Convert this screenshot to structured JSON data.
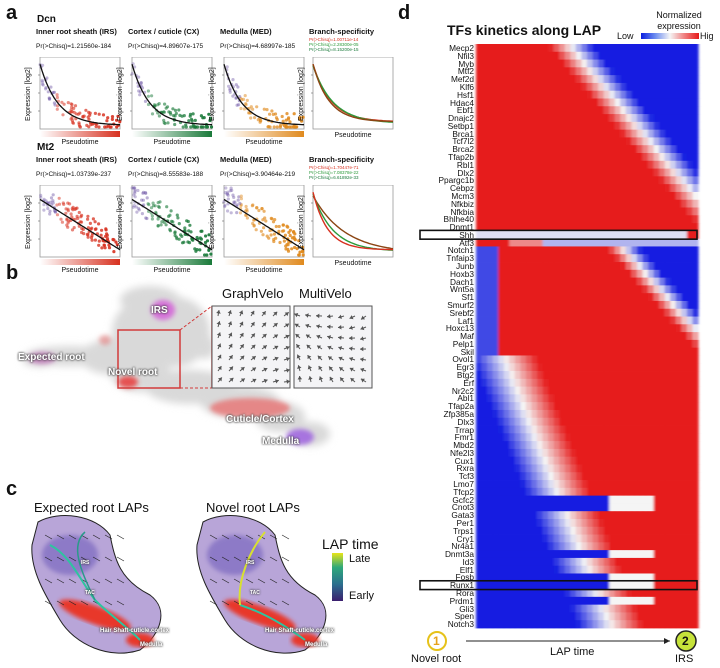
{
  "panel_letters": {
    "a": "a",
    "b": "b",
    "c": "c",
    "d": "d"
  },
  "panel_a": {
    "genes": [
      {
        "name": "Dcn",
        "plots": [
          {
            "title": "Inner root sheath (IRS)",
            "pval": "Pr(>Chisq)=1.21560e-184"
          },
          {
            "title": "Cortex / cuticle (CX)",
            "pval": "Pr(>Chisq)=4.89607e-175"
          },
          {
            "title": "Medulla (MED)",
            "pval": "Pr(>Chisq)=4.68997e-185"
          },
          {
            "title": "Branch-specificity",
            "pval": ""
          }
        ],
        "branch_pvals": [
          "Pr(>Chisq)=1.00711e-14",
          "Pr(>Chisq)=2.28300e-05",
          "Pr(>Chisq)=8.15200e-15"
        ]
      },
      {
        "name": "Mt2",
        "plots": [
          {
            "title": "Inner root sheath (IRS)",
            "pval": "Pr(>Chisq)=1.03739e-237"
          },
          {
            "title": "Cortex / cuticle (CX)",
            "pval": "Pr(>Chisq)=8.55583e-188"
          },
          {
            "title": "Medulla (MED)",
            "pval": "Pr(>Chisq)=3.90464e-219"
          },
          {
            "title": "Branch-specificity",
            "pval": ""
          }
        ],
        "branch_pvals": [
          "Pr(>Chisq)=1.70447e-71",
          "Pr(>Chisq)=7.08378e-22",
          "Pr(>Chisq)=6.61892e-33"
        ]
      }
    ],
    "ylabel": "Expression [log2]",
    "xlabel": "Pseudotime",
    "colors": {
      "irs": "#d7301f",
      "cx": "#1a7a3a",
      "med": "#e08a1e",
      "start": "#6a51a3"
    }
  },
  "panel_b": {
    "labels": {
      "irs": "IRS",
      "expected_root": "Expected root",
      "novel_root": "Novel root",
      "cuticle": "Cuticle/Cortex",
      "medulla": "Medulla"
    },
    "inset_titles": [
      "GraphVelo",
      "MultiVelo"
    ]
  },
  "panel_c": {
    "titles": [
      "Expected root LAPs",
      "Novel root LAPs"
    ],
    "labels": {
      "irs": "IRS",
      "tac": "TAC",
      "hair": "Hair Shaft-cuticle.cortex",
      "medulla": "Medulla"
    },
    "legend_title": "LAP time",
    "legend_late": "Late",
    "legend_early": "Early"
  },
  "panel_d": {
    "title": "TFs kinetics along LAP",
    "legend_title": "Normalized expression",
    "legend_low": "Low",
    "legend_high": "Hig",
    "start_marker": "1",
    "end_marker": "2",
    "start_label": "Novel root",
    "end_label": "IRS",
    "xlabel": "LAP time",
    "genes": [
      "Mecp2",
      "Nfil3",
      "Myb",
      "Mtf2",
      "Mef2d",
      "Klf6",
      "Hsf1",
      "Hdac4",
      "Ebf1",
      "Dnajc2",
      "Setbp1",
      "Brca1",
      "Tcf7l2",
      "Brca2",
      "Tfap2b",
      "Rbl1",
      "Dlx2",
      "Ppargc1b",
      "Cebpz",
      "Mcm3",
      "Nfkbiz",
      "Nfkbia",
      "Bhlhe40",
      "Dnmt1",
      "Shh",
      "Atf3",
      "Notch1",
      "Tnfaip3",
      "Junb",
      "Hoxb3",
      "Dach1",
      "Wnt5a",
      "Sf1",
      "Smurf2",
      "Srebf2",
      "Laf1",
      "Hoxc13",
      "Maf",
      "Pelp1",
      "Skil",
      "Ovol1",
      "Egr3",
      "Btg2",
      "Erf",
      "Nr2c2",
      "Abl1",
      "Tfap2a",
      "Zfp385a",
      "Dlx3",
      "Trrap",
      "Fmr1",
      "Mbd2",
      "Nfe2l3",
      "Cux1",
      "Rxra",
      "Tcf3",
      "Lmo7",
      "Tfcp2",
      "Gcfc2",
      "Cnot3",
      "Gata3",
      "Per1",
      "Trps1",
      "Cry1",
      "Nr4a1",
      "Dnmt3a",
      "Id3",
      "Elf1",
      "Fosb",
      "Runx1",
      "Rora",
      "Prdm1",
      "Gli3",
      "Spen",
      "Notch3"
    ],
    "highlighted": [
      "Shh",
      "Runx1"
    ]
  }
}
